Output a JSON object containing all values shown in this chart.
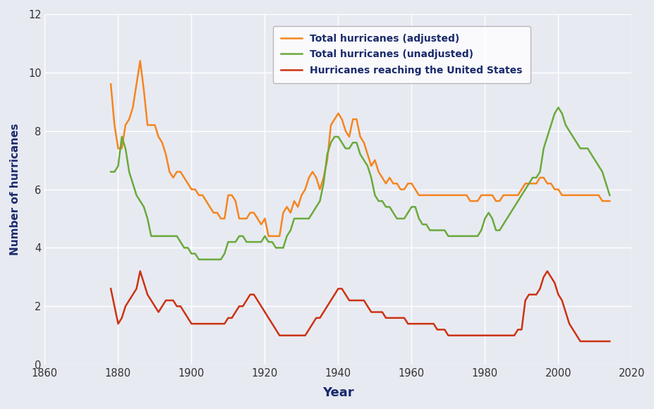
{
  "xlabel": "Year",
  "ylabel": "Number of hurricanes",
  "fig_facecolor": "#e8eaf2",
  "ax_facecolor": "#e8eaf2",
  "xlim": [
    1860,
    2020
  ],
  "ylim": [
    0,
    12
  ],
  "yticks": [
    0,
    2,
    4,
    6,
    8,
    10,
    12
  ],
  "xticks": [
    1860,
    1880,
    1900,
    1920,
    1940,
    1960,
    1980,
    2000,
    2020
  ],
  "adjusted_color": "#f5851f",
  "unadjusted_color": "#6aaa3a",
  "us_color": "#cc3311",
  "adjusted_label": "Total hurricanes (adjusted)",
  "unadjusted_label": "Total hurricanes (unadjusted)",
  "us_label": "Hurricanes reaching the United States",
  "years_adjusted": [
    1878,
    1879,
    1880,
    1881,
    1882,
    1883,
    1884,
    1885,
    1886,
    1887,
    1888,
    1889,
    1890,
    1891,
    1892,
    1893,
    1894,
    1895,
    1896,
    1897,
    1898,
    1899,
    1900,
    1901,
    1902,
    1903,
    1904,
    1905,
    1906,
    1907,
    1908,
    1909,
    1910,
    1911,
    1912,
    1913,
    1914,
    1915,
    1916,
    1917,
    1918,
    1919,
    1920,
    1921,
    1922,
    1923,
    1924,
    1925,
    1926,
    1927,
    1928,
    1929,
    1930,
    1931,
    1932,
    1933,
    1934,
    1935,
    1936,
    1937,
    1938,
    1939,
    1940,
    1941,
    1942,
    1943,
    1944,
    1945,
    1946,
    1947,
    1948,
    1949,
    1950,
    1951,
    1952,
    1953,
    1954,
    1955,
    1956,
    1957,
    1958,
    1959,
    1960,
    1961,
    1962,
    1963,
    1964,
    1965,
    1966,
    1967,
    1968,
    1969,
    1970,
    1971,
    1972,
    1973,
    1974,
    1975,
    1976,
    1977,
    1978,
    1979,
    1980,
    1981,
    1982,
    1983,
    1984,
    1985,
    1986,
    1987,
    1988,
    1989,
    1990,
    1991,
    1992,
    1993,
    1994,
    1995,
    1996,
    1997,
    1998,
    1999,
    2000,
    2001,
    2002,
    2003,
    2004,
    2005,
    2006,
    2007,
    2008,
    2009,
    2010,
    2011,
    2012,
    2013,
    2014
  ],
  "values_adjusted": [
    9.6,
    8.2,
    7.4,
    7.4,
    8.2,
    8.4,
    8.8,
    9.6,
    10.4,
    9.4,
    8.2,
    8.2,
    8.2,
    7.8,
    7.6,
    7.2,
    6.6,
    6.4,
    6.6,
    6.6,
    6.4,
    6.2,
    6.0,
    6.0,
    5.8,
    5.8,
    5.6,
    5.4,
    5.2,
    5.2,
    5.0,
    5.0,
    5.8,
    5.8,
    5.6,
    5.0,
    5.0,
    5.0,
    5.2,
    5.2,
    5.0,
    4.8,
    5.0,
    4.4,
    4.4,
    4.4,
    4.4,
    5.2,
    5.4,
    5.2,
    5.6,
    5.4,
    5.8,
    6.0,
    6.4,
    6.6,
    6.4,
    6.0,
    6.4,
    7.0,
    8.2,
    8.4,
    8.6,
    8.4,
    8.0,
    7.8,
    8.4,
    8.4,
    7.8,
    7.6,
    7.2,
    6.8,
    7.0,
    6.6,
    6.4,
    6.2,
    6.4,
    6.2,
    6.2,
    6.0,
    6.0,
    6.2,
    6.2,
    6.0,
    5.8,
    5.8,
    5.8,
    5.8,
    5.8,
    5.8,
    5.8,
    5.8,
    5.8,
    5.8,
    5.8,
    5.8,
    5.8,
    5.8,
    5.6,
    5.6,
    5.6,
    5.8,
    5.8,
    5.8,
    5.8,
    5.6,
    5.6,
    5.8,
    5.8,
    5.8,
    5.8,
    5.8,
    6.0,
    6.2,
    6.2,
    6.2,
    6.2,
    6.4,
    6.4,
    6.2,
    6.2,
    6.0,
    6.0,
    5.8,
    5.8,
    5.8,
    5.8,
    5.8,
    5.8,
    5.8,
    5.8,
    5.8,
    5.8,
    5.8,
    5.6,
    5.6,
    5.6
  ],
  "years_unadjusted": [
    1878,
    1879,
    1880,
    1881,
    1882,
    1883,
    1884,
    1885,
    1886,
    1887,
    1888,
    1889,
    1890,
    1891,
    1892,
    1893,
    1894,
    1895,
    1896,
    1897,
    1898,
    1899,
    1900,
    1901,
    1902,
    1903,
    1904,
    1905,
    1906,
    1907,
    1908,
    1909,
    1910,
    1911,
    1912,
    1913,
    1914,
    1915,
    1916,
    1917,
    1918,
    1919,
    1920,
    1921,
    1922,
    1923,
    1924,
    1925,
    1926,
    1927,
    1928,
    1929,
    1930,
    1931,
    1932,
    1933,
    1934,
    1935,
    1936,
    1937,
    1938,
    1939,
    1940,
    1941,
    1942,
    1943,
    1944,
    1945,
    1946,
    1947,
    1948,
    1949,
    1950,
    1951,
    1952,
    1953,
    1954,
    1955,
    1956,
    1957,
    1958,
    1959,
    1960,
    1961,
    1962,
    1963,
    1964,
    1965,
    1966,
    1967,
    1968,
    1969,
    1970,
    1971,
    1972,
    1973,
    1974,
    1975,
    1976,
    1977,
    1978,
    1979,
    1980,
    1981,
    1982,
    1983,
    1984,
    1985,
    1986,
    1987,
    1988,
    1989,
    1990,
    1991,
    1992,
    1993,
    1994,
    1995,
    1996,
    1997,
    1998,
    1999,
    2000,
    2001,
    2002,
    2003,
    2004,
    2005,
    2006,
    2007,
    2008,
    2009,
    2010,
    2011,
    2012,
    2013,
    2014
  ],
  "values_unadjusted": [
    6.6,
    6.6,
    6.8,
    7.8,
    7.4,
    6.6,
    6.2,
    5.8,
    5.6,
    5.4,
    5.0,
    4.4,
    4.4,
    4.4,
    4.4,
    4.4,
    4.4,
    4.4,
    4.4,
    4.2,
    4.0,
    4.0,
    3.8,
    3.8,
    3.6,
    3.6,
    3.6,
    3.6,
    3.6,
    3.6,
    3.6,
    3.8,
    4.2,
    4.2,
    4.2,
    4.4,
    4.4,
    4.2,
    4.2,
    4.2,
    4.2,
    4.2,
    4.4,
    4.2,
    4.2,
    4.0,
    4.0,
    4.0,
    4.4,
    4.6,
    5.0,
    5.0,
    5.0,
    5.0,
    5.0,
    5.2,
    5.4,
    5.6,
    6.2,
    7.2,
    7.6,
    7.8,
    7.8,
    7.6,
    7.4,
    7.4,
    7.6,
    7.6,
    7.2,
    7.0,
    6.8,
    6.4,
    5.8,
    5.6,
    5.6,
    5.4,
    5.4,
    5.2,
    5.0,
    5.0,
    5.0,
    5.2,
    5.4,
    5.4,
    5.0,
    4.8,
    4.8,
    4.6,
    4.6,
    4.6,
    4.6,
    4.6,
    4.4,
    4.4,
    4.4,
    4.4,
    4.4,
    4.4,
    4.4,
    4.4,
    4.4,
    4.6,
    5.0,
    5.2,
    5.0,
    4.6,
    4.6,
    4.8,
    5.0,
    5.2,
    5.4,
    5.6,
    5.8,
    6.0,
    6.2,
    6.4,
    6.4,
    6.6,
    7.4,
    7.8,
    8.2,
    8.6,
    8.8,
    8.6,
    8.2,
    8.0,
    7.8,
    7.6,
    7.4,
    7.4,
    7.4,
    7.2,
    7.0,
    6.8,
    6.6,
    6.2,
    5.8
  ],
  "years_us": [
    1878,
    1879,
    1880,
    1881,
    1882,
    1883,
    1884,
    1885,
    1886,
    1887,
    1888,
    1889,
    1890,
    1891,
    1892,
    1893,
    1894,
    1895,
    1896,
    1897,
    1898,
    1899,
    1900,
    1901,
    1902,
    1903,
    1904,
    1905,
    1906,
    1907,
    1908,
    1909,
    1910,
    1911,
    1912,
    1913,
    1914,
    1915,
    1916,
    1917,
    1918,
    1919,
    1920,
    1921,
    1922,
    1923,
    1924,
    1925,
    1926,
    1927,
    1928,
    1929,
    1930,
    1931,
    1932,
    1933,
    1934,
    1935,
    1936,
    1937,
    1938,
    1939,
    1940,
    1941,
    1942,
    1943,
    1944,
    1945,
    1946,
    1947,
    1948,
    1949,
    1950,
    1951,
    1952,
    1953,
    1954,
    1955,
    1956,
    1957,
    1958,
    1959,
    1960,
    1961,
    1962,
    1963,
    1964,
    1965,
    1966,
    1967,
    1968,
    1969,
    1970,
    1971,
    1972,
    1973,
    1974,
    1975,
    1976,
    1977,
    1978,
    1979,
    1980,
    1981,
    1982,
    1983,
    1984,
    1985,
    1986,
    1987,
    1988,
    1989,
    1990,
    1991,
    1992,
    1993,
    1994,
    1995,
    1996,
    1997,
    1998,
    1999,
    2000,
    2001,
    2002,
    2003,
    2004,
    2005,
    2006,
    2007,
    2008,
    2009,
    2010,
    2011,
    2012,
    2013,
    2014
  ],
  "values_us": [
    2.6,
    2.0,
    1.4,
    1.6,
    2.0,
    2.2,
    2.4,
    2.6,
    3.2,
    2.8,
    2.4,
    2.2,
    2.0,
    1.8,
    2.0,
    2.2,
    2.2,
    2.2,
    2.0,
    2.0,
    1.8,
    1.6,
    1.4,
    1.4,
    1.4,
    1.4,
    1.4,
    1.4,
    1.4,
    1.4,
    1.4,
    1.4,
    1.6,
    1.6,
    1.8,
    2.0,
    2.0,
    2.2,
    2.4,
    2.4,
    2.2,
    2.0,
    1.8,
    1.6,
    1.4,
    1.2,
    1.0,
    1.0,
    1.0,
    1.0,
    1.0,
    1.0,
    1.0,
    1.0,
    1.2,
    1.4,
    1.6,
    1.6,
    1.8,
    2.0,
    2.2,
    2.4,
    2.6,
    2.6,
    2.4,
    2.2,
    2.2,
    2.2,
    2.2,
    2.2,
    2.0,
    1.8,
    1.8,
    1.8,
    1.8,
    1.6,
    1.6,
    1.6,
    1.6,
    1.6,
    1.6,
    1.4,
    1.4,
    1.4,
    1.4,
    1.4,
    1.4,
    1.4,
    1.4,
    1.2,
    1.2,
    1.2,
    1.0,
    1.0,
    1.0,
    1.0,
    1.0,
    1.0,
    1.0,
    1.0,
    1.0,
    1.0,
    1.0,
    1.0,
    1.0,
    1.0,
    1.0,
    1.0,
    1.0,
    1.0,
    1.0,
    1.2,
    1.2,
    2.2,
    2.4,
    2.4,
    2.4,
    2.6,
    3.0,
    3.2,
    3.0,
    2.8,
    2.4,
    2.2,
    1.8,
    1.4,
    1.2,
    1.0,
    0.8,
    0.8,
    0.8,
    0.8,
    0.8,
    0.8,
    0.8,
    0.8,
    0.8
  ]
}
